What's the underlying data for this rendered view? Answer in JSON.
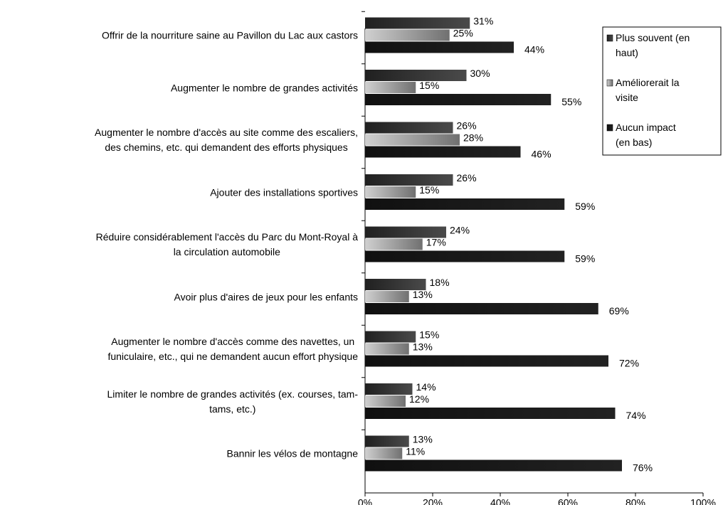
{
  "chart_data": {
    "type": "bar",
    "orientation": "horizontal",
    "categories": [
      "Offrir de la nourriture saine au Pavillon du Lac aux castors",
      "Augmenter le nombre de grandes activités",
      "Augmenter le nombre d'accès au site comme des escaliers,\ndes chemins, etc. qui demandent des efforts physiques",
      "Ajouter des installations sportives",
      "Réduire considérablement l'accès du Parc du Mont-Royal à\nla circulation automobile",
      "Avoir plus d'aires de jeux pour les enfants",
      "Augmenter le nombre d'accès comme des navettes, un\nfuniculaire, etc., qui ne demandent aucun effort physique",
      "Limiter le nombre de grandes activités (ex. courses, tam-\ntams, etc.)",
      "Bannir les vélos de montagne"
    ],
    "series": [
      {
        "name": "Plus souvent (en\nhaut)",
        "color": "#3c3c3c",
        "values": [
          31,
          30,
          26,
          26,
          24,
          18,
          15,
          14,
          13
        ],
        "value_labels": [
          "31%",
          "30%",
          "26%",
          "26%",
          "24%",
          "18%",
          "15%",
          "14%",
          "13%"
        ]
      },
      {
        "name": "Améliorerait la\nvisite",
        "color": "#a8a8a8",
        "values": [
          25,
          15,
          28,
          15,
          17,
          13,
          13,
          12,
          11
        ],
        "value_labels": [
          "25%",
          "15%",
          "28%",
          "15%",
          "17%",
          "13%",
          "13%",
          "12%",
          "11%"
        ]
      },
      {
        "name": "Aucun impact\n(en bas)",
        "color": "#161616",
        "values": [
          44,
          55,
          46,
          59,
          59,
          69,
          72,
          74,
          76
        ],
        "value_labels": [
          "44%",
          "55%",
          "46%",
          "59%",
          "59%",
          "69%",
          "72%",
          "74%",
          "76%"
        ]
      }
    ],
    "xlim": [
      0,
      100
    ],
    "xticks": [
      {
        "value": 0,
        "label": "0%"
      },
      {
        "value": 20,
        "label": "20%"
      },
      {
        "value": 40,
        "label": "40%"
      },
      {
        "value": 60,
        "label": "60%"
      },
      {
        "value": 80,
        "label": "80%"
      },
      {
        "value": 100,
        "label": "100%"
      }
    ],
    "legend": "right"
  }
}
